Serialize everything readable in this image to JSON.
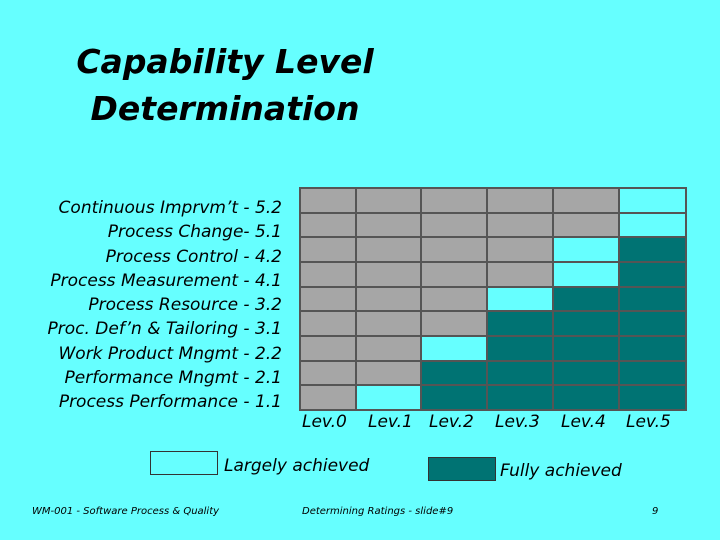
{
  "title": {
    "line1": "Capability Level",
    "line2": "Determination"
  },
  "processes": [
    "Continuous Imprvm’t - 5.2",
    "Process Change- 5.1",
    "Process Control - 4.2",
    "Process Measurement - 4.1",
    "Process Resource - 3.2",
    "Proc. Def’n & Tailoring - 3.1",
    "Work Product Mngmt - 2.2",
    "Performance Mngmt - 2.1",
    "Process Performance - 1.1"
  ],
  "levels": [
    "Lev.0",
    "Lev.1",
    "Lev.2",
    "Lev.3",
    "Lev.4",
    "Lev.5"
  ],
  "matrix": [
    [
      0,
      0,
      0,
      0,
      0,
      1
    ],
    [
      0,
      0,
      0,
      0,
      0,
      1
    ],
    [
      0,
      0,
      0,
      0,
      1,
      2
    ],
    [
      0,
      0,
      0,
      0,
      1,
      2
    ],
    [
      0,
      0,
      0,
      1,
      2,
      2
    ],
    [
      0,
      0,
      0,
      2,
      2,
      2
    ],
    [
      0,
      0,
      1,
      2,
      2,
      2
    ],
    [
      0,
      0,
      2,
      2,
      2,
      2
    ],
    [
      0,
      1,
      2,
      2,
      2,
      2
    ]
  ],
  "status_colors": {
    "not_achieved": "#a6a6a6",
    "largely": "#66ffff",
    "fully": "#007373"
  },
  "legend": {
    "largely": "Largely achieved",
    "fully": "Fully achieved"
  },
  "footer": {
    "left": "WM-001 - Software Process & Quality",
    "center": "Determining Ratings - slide#9",
    "page": "9"
  }
}
